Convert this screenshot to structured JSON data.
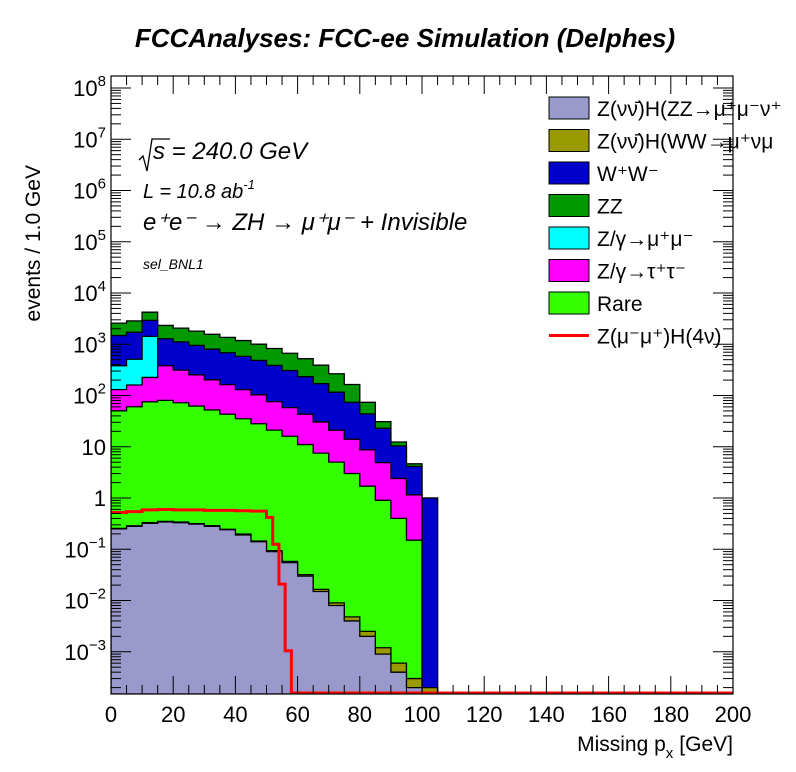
{
  "chart_data": {
    "type": "bar",
    "subtype": "stacked-histogram-log",
    "title": "FCCAnalyses: FCC-ee Simulation (Delphes)",
    "xlabel": "Missing p_x [GeV]",
    "xlabel_main": "Missing p",
    "xlabel_sub": "x",
    "xlabel_unit": "[GeV]",
    "ylabel": "events / 1.0 GeV",
    "xlim": [
      0,
      200
    ],
    "ylim": [
      0.00015,
      100000000
    ],
    "yscale": "log",
    "grid": false,
    "legend_position": "top-right",
    "x_ticks": [
      "0",
      "20",
      "40",
      "60",
      "80",
      "100",
      "120",
      "140",
      "160",
      "180",
      "200"
    ],
    "y_ticks": [
      {
        "value": 100000000,
        "base": "10",
        "exp": "8"
      },
      {
        "value": 10000000,
        "base": "10",
        "exp": "7"
      },
      {
        "value": 1000000,
        "base": "10",
        "exp": "6"
      },
      {
        "value": 100000,
        "base": "10",
        "exp": "5"
      },
      {
        "value": 10000,
        "base": "10",
        "exp": "4"
      },
      {
        "value": 1000,
        "base": "10",
        "exp": "3"
      },
      {
        "value": 100,
        "base": "10",
        "exp": "2"
      },
      {
        "value": 10,
        "base": "10",
        "exp": ""
      },
      {
        "value": 1,
        "base": "1",
        "exp": ""
      },
      {
        "value": 0.1,
        "base": "10",
        "exp": "−1"
      },
      {
        "value": 0.01,
        "base": "10",
        "exp": "−2"
      },
      {
        "value": 0.001,
        "base": "10",
        "exp": "−3"
      }
    ],
    "annotations": {
      "sqrt_s": "s = 240.0 GeV",
      "lumi_prefix": "L = 10.8 ab",
      "lumi_exp": "-1",
      "process": "e⁺e⁻ → ZH → μ⁺μ⁻ + Invisible",
      "selection": "sel_BNL1"
    },
    "series": [
      {
        "name": "Z(νν̄)H(ZZ→μ⁺μ⁻ν⁺",
        "color": "#9999cc",
        "kind": "stack",
        "bins_x": [
          0,
          5,
          10,
          15,
          20,
          25,
          30,
          35,
          40,
          45,
          50,
          55,
          60,
          65,
          70,
          75,
          80,
          85,
          90,
          95,
          100
        ],
        "values": [
          0.25,
          0.28,
          0.32,
          0.34,
          0.33,
          0.31,
          0.28,
          0.24,
          0.19,
          0.14,
          0.09,
          0.055,
          0.03,
          0.015,
          0.008,
          0.004,
          0.002,
          0.0009,
          0.0004,
          0.0002,
          0.0001
        ]
      },
      {
        "name": "Z(νν̄)H(WW→μ⁺νμ",
        "color": "#999900",
        "kind": "stack",
        "bins_x": [
          0,
          5,
          10,
          15,
          20,
          25,
          30,
          35,
          40,
          45,
          50,
          55,
          60,
          65,
          70,
          75,
          80,
          85,
          90,
          95,
          100
        ],
        "values": [
          0.006,
          0.008,
          0.01,
          0.009,
          0.011,
          0.007,
          0.009,
          0.006,
          0.008,
          0.005,
          0.004,
          0.003,
          0.002,
          0.0015,
          0.001,
          0.0008,
          0.0005,
          0.0003,
          0.0002,
          0.0001,
          0.0001
        ]
      },
      {
        "name": "W⁺W⁻",
        "color": "#0000cc",
        "kind": "stack",
        "bins_x": [
          0,
          5,
          10,
          15,
          20,
          25,
          30,
          35,
          40,
          45,
          50,
          55,
          60,
          65,
          70,
          75,
          80,
          85,
          90,
          95,
          100
        ],
        "values": [
          1100,
          1200,
          1500,
          900,
          800,
          700,
          600,
          520,
          450,
          380,
          310,
          250,
          190,
          140,
          95,
          60,
          35,
          18,
          8,
          3,
          1
        ]
      },
      {
        "name": "ZZ",
        "color": "#009900",
        "kind": "stack",
        "bins_x": [
          0,
          5,
          10,
          15,
          20,
          25,
          30,
          35,
          40,
          45,
          50,
          55,
          60,
          65,
          70,
          75,
          80,
          85,
          90,
          95,
          100
        ],
        "values": [
          1100,
          1150,
          1300,
          1050,
          950,
          850,
          760,
          680,
          600,
          520,
          440,
          360,
          290,
          220,
          150,
          90,
          30,
          8,
          2,
          0.5,
          0
        ]
      },
      {
        "name": "Z/γ→μ⁺μ⁻",
        "color": "#00ffff",
        "kind": "stack",
        "bins_x": [
          0,
          5,
          10,
          15,
          20,
          25,
          30,
          35,
          40,
          45,
          50,
          55,
          60,
          65,
          70,
          75,
          80,
          85,
          90,
          95,
          100
        ],
        "values": [
          250,
          350,
          1200,
          0,
          0,
          0,
          0,
          0,
          0,
          0,
          0,
          0,
          0,
          0,
          0,
          0,
          0,
          0,
          0,
          0,
          0
        ]
      },
      {
        "name": "Z/γ→τ⁺τ⁻",
        "color": "#ff00ff",
        "kind": "stack",
        "bins_x": [
          0,
          5,
          10,
          15,
          20,
          25,
          30,
          35,
          40,
          45,
          50,
          55,
          60,
          65,
          70,
          75,
          80,
          85,
          90,
          95,
          100
        ],
        "values": [
          80,
          100,
          150,
          300,
          240,
          190,
          150,
          120,
          95,
          75,
          55,
          42,
          32,
          23,
          16,
          11,
          7,
          4,
          2,
          1,
          0
        ]
      },
      {
        "name": "Rare",
        "color": "#33ff00",
        "kind": "stack",
        "bins_x": [
          0,
          5,
          10,
          15,
          20,
          25,
          30,
          35,
          40,
          45,
          50,
          55,
          60,
          65,
          70,
          75,
          80,
          85,
          90,
          95,
          100
        ],
        "values": [
          50,
          60,
          75,
          80,
          72,
          62,
          52,
          43,
          35,
          28,
          21,
          16,
          11,
          7.5,
          5,
          3,
          1.7,
          0.9,
          0.4,
          0.15,
          0
        ]
      },
      {
        "name": "Z(μ⁻μ⁺)H(4ν)",
        "color": "#ff0000",
        "kind": "line",
        "bins_x": [
          0,
          5,
          10,
          15,
          20,
          25,
          30,
          35,
          40,
          45,
          50,
          52,
          54,
          56,
          58,
          200
        ],
        "values": [
          0.5,
          0.52,
          0.56,
          0.57,
          0.56,
          0.56,
          0.55,
          0.55,
          0.54,
          0.53,
          0.4,
          0.12,
          0.02,
          0.001,
          0.00015,
          0.00015
        ]
      }
    ]
  },
  "legend": [
    {
      "label": "Z(νν̄)H(ZZ→μ⁺μ⁻ν⁺",
      "color": "#9999cc",
      "kind": "box"
    },
    {
      "label": "Z(νν̄)H(WW→μ⁺νμ",
      "color": "#999900",
      "kind": "box"
    },
    {
      "label": "W⁺W⁻",
      "color": "#0000cc",
      "kind": "box"
    },
    {
      "label": "ZZ",
      "color": "#009900",
      "kind": "box"
    },
    {
      "label": "Z/γ→μ⁺μ⁻",
      "color": "#00ffff",
      "kind": "box"
    },
    {
      "label": "Z/γ→τ⁺τ⁻",
      "color": "#ff00ff",
      "kind": "box"
    },
    {
      "label": "Rare",
      "color": "#33ff00",
      "kind": "box"
    },
    {
      "label": "Z(μ⁻μ⁺)H(4ν)",
      "color": "#ff0000",
      "kind": "line"
    }
  ]
}
